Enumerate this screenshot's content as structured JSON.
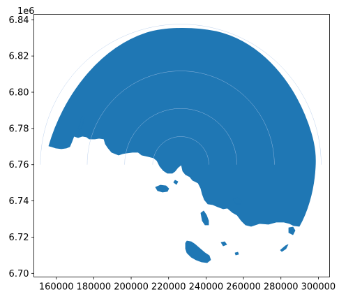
{
  "chart_data": {
    "type": "map",
    "title": "",
    "xlabel": "",
    "ylabel": "",
    "y_offset_label": "1e6",
    "xlim": [
      148000,
      306000
    ],
    "ylim": [
      6698000,
      6843000
    ],
    "x_ticks": [
      160000,
      180000,
      200000,
      220000,
      240000,
      260000,
      280000,
      300000
    ],
    "x_tick_labels": [
      "160000",
      "180000",
      "200000",
      "220000",
      "240000",
      "260000",
      "280000",
      "300000"
    ],
    "y_ticks": [
      6.7,
      6.72,
      6.74,
      6.76,
      6.78,
      6.8,
      6.82,
      6.84
    ],
    "y_tick_labels": [
      "6.70",
      "6.72",
      "6.74",
      "6.76",
      "6.78",
      "6.80",
      "6.82",
      "6.84"
    ],
    "grid": false,
    "fill_color": "#1f77b4",
    "ring_center": [
      226500,
      6760000
    ],
    "ring_radii": [
      15000,
      30000,
      50000,
      75000
    ]
  }
}
